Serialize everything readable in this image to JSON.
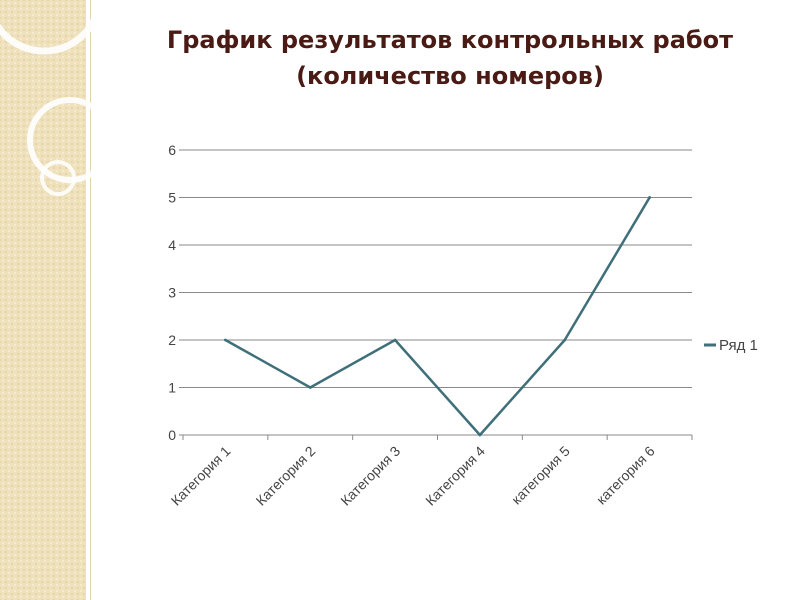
{
  "slide": {
    "title": "График результатов контрольных работ\n(количество номеров)"
  },
  "colors": {
    "series_line": "#3f6f78",
    "gridline": "#8a8a8a",
    "axis_text": "#444444",
    "title": "#4a1b14",
    "side_band": "#efe1bc"
  },
  "chart_data": {
    "type": "line",
    "title": "График результатов контрольных работ (количество номеров)",
    "categories": [
      "Категория 1",
      "Категория 2",
      "Категория 3",
      "Категория 4",
      "категория 5",
      "категория 6"
    ],
    "series": [
      {
        "name": "Ряд 1",
        "values": [
          2,
          1,
          2,
          0,
          2,
          5
        ]
      }
    ],
    "yticks": [
      "0",
      "1",
      "2",
      "3",
      "4",
      "5",
      "6"
    ],
    "ylim": [
      0,
      6
    ],
    "xlabel": "",
    "ylabel": "",
    "grid": true,
    "legend": "right"
  }
}
